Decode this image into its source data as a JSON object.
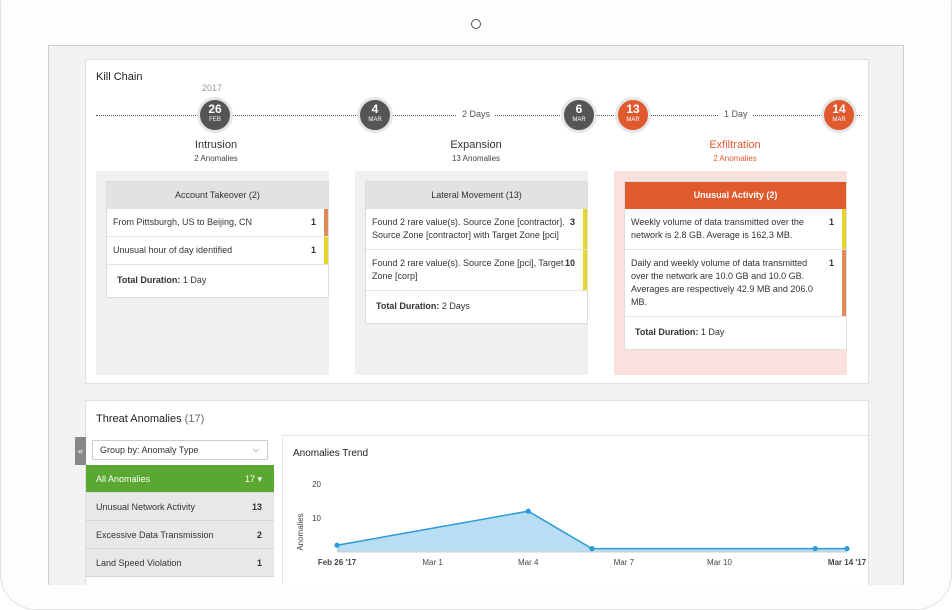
{
  "kill_chain": {
    "title": "Kill Chain",
    "year": "2017",
    "nodes": [
      {
        "day": "26",
        "month": "FEB",
        "style": "dark"
      },
      {
        "day": "4",
        "month": "MAR",
        "style": "dark"
      },
      {
        "day": "6",
        "month": "MAR",
        "style": "dark"
      },
      {
        "day": "13",
        "month": "MAR",
        "style": "red"
      },
      {
        "day": "14",
        "month": "MAR",
        "style": "red"
      }
    ],
    "gaps": [
      "2 Days",
      "1 Day"
    ],
    "stages": [
      {
        "name": "Intrusion",
        "anomalies": "2 Anomalies",
        "card_title": "Account Takeover (2)",
        "rows": [
          {
            "text": "From Pittsburgh, US to Beijing, CN",
            "count": "1",
            "color": "#e08a5a"
          },
          {
            "text": "Unusual hour of day identified",
            "count": "1",
            "color": "#e6d52a"
          }
        ],
        "total_label": "Total Duration:",
        "total_value": "1 Day"
      },
      {
        "name": "Expansion",
        "anomalies": "13 Anomalies",
        "card_title": "Lateral Movement (13)",
        "rows": [
          {
            "text": "Found 2 rare value(s). Source Zone [contractor]. Source Zone [contractor] with Target Zone [pci]",
            "count": "3",
            "color": "#e6d52a"
          },
          {
            "text": "Found 2 rare value(s). Source Zone [pci], Target Zone [corp]",
            "count": "10",
            "color": "#e6d52a"
          }
        ],
        "total_label": "Total Duration:",
        "total_value": "2 Days"
      },
      {
        "name": "Exfiltration",
        "anomalies": "2 Anomalies",
        "card_title": "Unusual Activity (2)",
        "rows": [
          {
            "text": "Weekly volume of data transmitted over the network is 2.8 GB. Average is 162.3 MB.",
            "count": "1",
            "color": "#e6d52a"
          },
          {
            "text": "Daily and weekly volume of data transmitted over the network are 10.0 GB and 10.0 GB. Averages are respectively 42.9 MB and 206.0 MB.",
            "count": "1",
            "color": "#e08a5a"
          }
        ],
        "total_label": "Total Duration:",
        "total_value": "1 Day"
      }
    ]
  },
  "threat_anomalies": {
    "title": "Threat Anomalies",
    "count": "(17)",
    "collapse_icon": "«",
    "group_by": "Group by: Anomaly Type",
    "items": [
      {
        "label": "All Anomalies",
        "count": "17 ▾",
        "active": true
      },
      {
        "label": "Unusual Network Activity",
        "count": "13"
      },
      {
        "label": "Excessive Data Transmission",
        "count": "2"
      },
      {
        "label": "Land Speed Violation",
        "count": "1"
      }
    ]
  },
  "trend": {
    "title": "Anomalies Trend"
  },
  "chart_data": {
    "type": "area",
    "title": "Anomalies Trend",
    "ylabel": "Anomalies",
    "xlabel": "",
    "ylim": [
      0,
      20
    ],
    "yticks": [
      20,
      10
    ],
    "xticks": [
      {
        "label": "Feb 26 '17",
        "day": 0,
        "bold": true
      },
      {
        "label": "Mar 1",
        "day": 3
      },
      {
        "label": "Mar 4",
        "day": 6
      },
      {
        "label": "Mar 7",
        "day": 9
      },
      {
        "label": "Mar 10",
        "day": 12
      },
      {
        "label": "Mar 14 '17",
        "day": 16,
        "bold": true
      }
    ],
    "points": [
      {
        "day": 0,
        "value": 2
      },
      {
        "day": 6,
        "value": 12
      },
      {
        "day": 8,
        "value": 1
      },
      {
        "day": 15,
        "value": 1
      },
      {
        "day": 16,
        "value": 1
      }
    ],
    "line_color": "#2a9bd8",
    "fill_color": "#b9ddf2"
  }
}
